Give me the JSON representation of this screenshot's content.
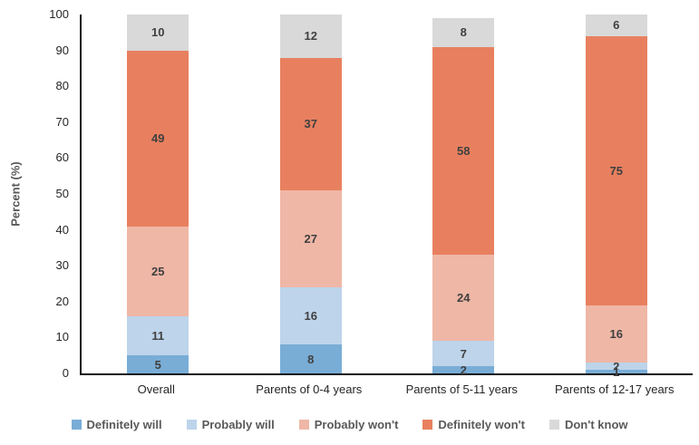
{
  "chart_data": {
    "type": "bar",
    "stacked": true,
    "title": "",
    "ylabel": "Percent (%)",
    "xlabel": "",
    "ylim": [
      0,
      100
    ],
    "ytick_step": 10,
    "grid": false,
    "legend_position": "bottom",
    "categories": [
      "Overall",
      "Parents of 0-4 years",
      "Parents of 5-11 years",
      "Parents of 12-17 years"
    ],
    "series": [
      {
        "name": "Definitely will",
        "color": "#79ADD6",
        "values": [
          5,
          8,
          2,
          1
        ]
      },
      {
        "name": "Probably will",
        "color": "#BDD4EA",
        "values": [
          11,
          16,
          7,
          2
        ]
      },
      {
        "name": "Probably won't",
        "color": "#EFB7A6",
        "values": [
          25,
          27,
          24,
          16
        ]
      },
      {
        "name": "Definitely won't",
        "color": "#E8805F",
        "values": [
          49,
          37,
          58,
          75
        ]
      },
      {
        "name": "Don't know",
        "color": "#D9D9D9",
        "values": [
          10,
          12,
          8,
          6
        ]
      }
    ],
    "colors": {
      "data_label": "#404040",
      "axis_text": "#262626",
      "legend_text": "#595959",
      "axis_line": "#151515"
    }
  }
}
